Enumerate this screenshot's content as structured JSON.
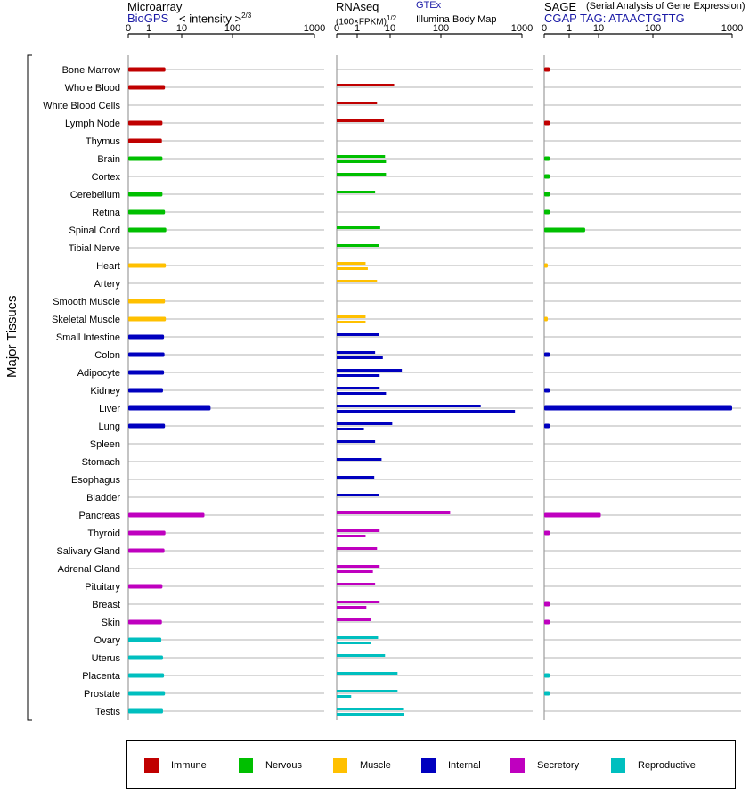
{
  "chart_data": {
    "type": "bar",
    "y_axis_label": "Major Tissues",
    "scale_note": "tick positions 0, 1, 10, 100, 1000",
    "categories": [
      "Bone Marrow",
      "Whole Blood",
      "White Blood Cells",
      "Lymph Node",
      "Thymus",
      "Brain",
      "Cortex",
      "Cerebellum",
      "Retina",
      "Spinal Cord",
      "Tibial Nerve",
      "Heart",
      "Artery",
      "Smooth Muscle",
      "Skeletal Muscle",
      "Small Intestine",
      "Colon",
      "Adipocyte",
      "Kidney",
      "Liver",
      "Lung",
      "Spleen",
      "Stomach",
      "Esophagus",
      "Bladder",
      "Pancreas",
      "Thyroid",
      "Salivary Gland",
      "Adrenal Gland",
      "Pituitary",
      "Breast",
      "Skin",
      "Ovary",
      "Uterus",
      "Placenta",
      "Prostate",
      "Testis"
    ],
    "category_groups": [
      "Immune",
      "Immune",
      "Immune",
      "Immune",
      "Immune",
      "Nervous",
      "Nervous",
      "Nervous",
      "Nervous",
      "Nervous",
      "Nervous",
      "Muscle",
      "Muscle",
      "Muscle",
      "Muscle",
      "Internal",
      "Internal",
      "Internal",
      "Internal",
      "Internal",
      "Internal",
      "Internal",
      "Internal",
      "Internal",
      "Internal",
      "Secretory",
      "Secretory",
      "Secretory",
      "Secretory",
      "Secretory",
      "Secretory",
      "Secretory",
      "Reproductive",
      "Reproductive",
      "Reproductive",
      "Reproductive",
      "Reproductive"
    ],
    "ticks": [
      "0",
      "1",
      "10",
      "100",
      "1000"
    ],
    "panels": [
      {
        "name": "Microarray",
        "source": "BioGPS",
        "unit_text": "< intensity >",
        "unit_power": "2/3",
        "series": [
          {
            "name": "BioGPS",
            "values": [
              3.2,
              3.1,
              null,
              2.6,
              2.5,
              2.6,
              null,
              2.6,
              3.1,
              3.4,
              null,
              3.3,
              null,
              3.1,
              3.3,
              2.9,
              3.0,
              2.9,
              2.7,
              37,
              3.1,
              null,
              null,
              null,
              null,
              28,
              3.2,
              3.0,
              null,
              2.6,
              null,
              2.5,
              2.4,
              2.7,
              2.9,
              3.1,
              2.7
            ]
          }
        ]
      },
      {
        "name": "RNAseq",
        "unit_text": "(100×FPKM)",
        "unit_power": "1/2",
        "series": [
          {
            "name": "GTEx",
            "values": [
              null,
              12,
              4,
              6.5,
              null,
              7,
              7.5,
              3.5,
              null,
              5,
              4.5,
              1.8,
              4,
              null,
              1.8,
              4.5,
              3.5,
              17,
              4.8,
              310,
              11,
              3.5,
              5.5,
              3.3,
              4.5,
              130,
              4.8,
              4,
              4.8,
              3.5,
              4.8,
              2.7,
              4.3,
              7,
              14,
              14,
              18
            ]
          },
          {
            "name": "Illumina Body Map",
            "values": [
              null,
              null,
              null,
              null,
              null,
              7.5,
              null,
              null,
              null,
              null,
              null,
              2.1,
              null,
              null,
              1.8,
              null,
              6,
              4.8,
              7.5,
              820,
              1.6,
              null,
              null,
              null,
              null,
              null,
              1.8,
              null,
              3,
              null,
              1.9,
              null,
              2.7,
              null,
              null,
              0.5,
              19
            ]
          }
        ]
      },
      {
        "name": "SAGE",
        "source_note": "(Serial Analysis of Gene Expression)",
        "tag": "CGAP TAG: ATAACTGTTG",
        "series": [
          {
            "name": "SAGE",
            "values": [
              0.05,
              null,
              null,
              0.05,
              null,
              0.05,
              0.05,
              0.05,
              0.05,
              3.5,
              null,
              0.02,
              null,
              null,
              0.02,
              null,
              0.05,
              null,
              0.05,
              1000,
              0.05,
              null,
              null,
              null,
              null,
              11,
              0.05,
              null,
              null,
              null,
              0.05,
              0.05,
              null,
              null,
              0.05,
              0.05,
              null
            ]
          }
        ]
      }
    ],
    "legend": [
      {
        "name": "Immune",
        "color": "#c00000"
      },
      {
        "name": "Nervous",
        "color": "#00bf00"
      },
      {
        "name": "Muscle",
        "color": "#ffc000"
      },
      {
        "name": "Internal",
        "color": "#0000bf"
      },
      {
        "name": "Secretory",
        "color": "#bf00bf"
      },
      {
        "name": "Reproductive",
        "color": "#00bfbf"
      }
    ]
  }
}
